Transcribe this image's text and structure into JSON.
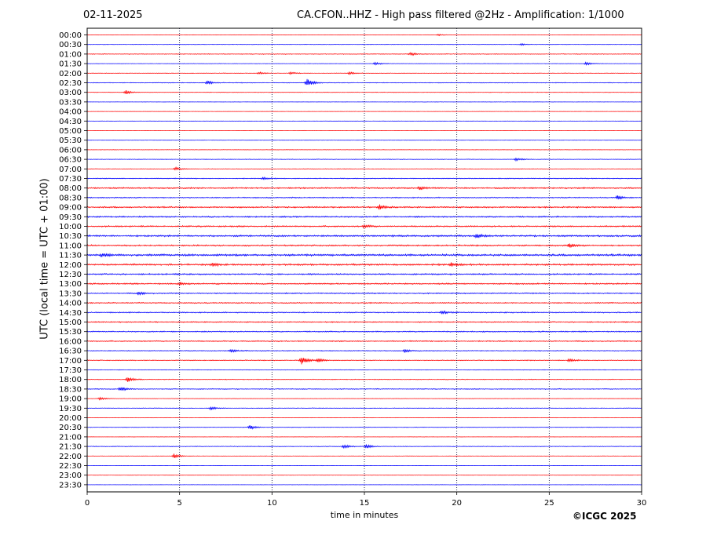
{
  "header": {
    "date": "02-11-2025",
    "title": "CA.CFON..HHZ - High pass filtered @2Hz - Amplification: 1/1000"
  },
  "footer": {
    "copyright": "©ICGC 2025"
  },
  "chart_data": {
    "type": "line",
    "xlabel": "time in minutes",
    "ylabel": "UTC (local time = UTC + 01:00)",
    "xlim": [
      0,
      30
    ],
    "x_ticks": [
      0,
      5,
      10,
      15,
      20,
      25,
      30
    ],
    "vertical_gridlines_at": [
      5,
      10,
      15,
      20,
      25
    ],
    "grid": "vertical dotted",
    "series_colors": [
      "#ff0000",
      "#0000ff"
    ],
    "row_labels": [
      "00:00",
      "00:30",
      "01:00",
      "01:30",
      "02:00",
      "02:30",
      "03:00",
      "03:30",
      "04:00",
      "04:30",
      "05:00",
      "05:30",
      "06:00",
      "06:30",
      "07:00",
      "07:30",
      "08:00",
      "08:30",
      "09:00",
      "09:30",
      "10:00",
      "10:30",
      "11:00",
      "11:30",
      "12:00",
      "12:30",
      "13:00",
      "13:30",
      "14:00",
      "14:30",
      "15:00",
      "15:30",
      "16:00",
      "16:30",
      "17:00",
      "17:30",
      "18:00",
      "18:30",
      "19:00",
      "19:30",
      "20:00",
      "20:30",
      "21:00",
      "21:30",
      "22:00",
      "22:30",
      "23:00",
      "23:30"
    ],
    "noise_level": [
      0.3,
      0.3,
      0.5,
      0.3,
      0.4,
      0.5,
      0.4,
      0.2,
      0.2,
      0.2,
      0.2,
      0.2,
      0.3,
      0.4,
      0.4,
      0.6,
      1.0,
      0.8,
      1.0,
      1.0,
      1.0,
      1.2,
      1.0,
      1.4,
      1.2,
      1.0,
      1.0,
      0.8,
      0.8,
      0.8,
      0.8,
      0.8,
      0.8,
      0.6,
      0.6,
      0.4,
      0.5,
      0.6,
      0.3,
      0.4,
      0.3,
      0.4,
      0.2,
      0.5,
      0.3,
      0.2,
      0.2,
      0.2
    ],
    "events": [
      {
        "row": 0,
        "minute": 19.0,
        "amp": 1.0
      },
      {
        "row": 1,
        "minute": 23.5,
        "amp": 1.0
      },
      {
        "row": 2,
        "minute": 17.5,
        "amp": 2.0
      },
      {
        "row": 3,
        "minute": 15.6,
        "amp": 2.0
      },
      {
        "row": 3,
        "minute": 27.0,
        "amp": 2.0
      },
      {
        "row": 4,
        "minute": 9.3,
        "amp": 1.5
      },
      {
        "row": 4,
        "minute": 11.0,
        "amp": 1.5
      },
      {
        "row": 4,
        "minute": 14.2,
        "amp": 1.5
      },
      {
        "row": 5,
        "minute": 6.5,
        "amp": 2.5
      },
      {
        "row": 5,
        "minute": 11.9,
        "amp": 6.0
      },
      {
        "row": 6,
        "minute": 2.1,
        "amp": 2.5
      },
      {
        "row": 13,
        "minute": 23.2,
        "amp": 2.0
      },
      {
        "row": 14,
        "minute": 4.8,
        "amp": 2.0
      },
      {
        "row": 15,
        "minute": 9.5,
        "amp": 1.5
      },
      {
        "row": 16,
        "minute": 18.0,
        "amp": 2.0
      },
      {
        "row": 17,
        "minute": 28.7,
        "amp": 2.5
      },
      {
        "row": 18,
        "minute": 15.8,
        "amp": 3.5
      },
      {
        "row": 20,
        "minute": 15.0,
        "amp": 2.0
      },
      {
        "row": 21,
        "minute": 21.1,
        "amp": 2.5
      },
      {
        "row": 22,
        "minute": 26.1,
        "amp": 2.5
      },
      {
        "row": 23,
        "minute": 0.8,
        "amp": 2.5
      },
      {
        "row": 24,
        "minute": 19.7,
        "amp": 3.0
      },
      {
        "row": 24,
        "minute": 6.8,
        "amp": 2.0
      },
      {
        "row": 26,
        "minute": 5.0,
        "amp": 2.0
      },
      {
        "row": 27,
        "minute": 2.8,
        "amp": 2.0
      },
      {
        "row": 29,
        "minute": 19.2,
        "amp": 2.0
      },
      {
        "row": 33,
        "minute": 7.8,
        "amp": 2.0
      },
      {
        "row": 33,
        "minute": 17.2,
        "amp": 2.0
      },
      {
        "row": 34,
        "minute": 11.6,
        "amp": 6.0
      },
      {
        "row": 34,
        "minute": 12.5,
        "amp": 2.5
      },
      {
        "row": 34,
        "minute": 26.1,
        "amp": 2.0
      },
      {
        "row": 36,
        "minute": 2.2,
        "amp": 3.5
      },
      {
        "row": 37,
        "minute": 1.8,
        "amp": 3.0
      },
      {
        "row": 38,
        "minute": 0.7,
        "amp": 2.0
      },
      {
        "row": 39,
        "minute": 6.7,
        "amp": 2.0
      },
      {
        "row": 41,
        "minute": 8.8,
        "amp": 3.0
      },
      {
        "row": 43,
        "minute": 13.9,
        "amp": 2.5
      },
      {
        "row": 43,
        "minute": 15.1,
        "amp": 2.5
      },
      {
        "row": 44,
        "minute": 4.7,
        "amp": 3.0
      }
    ]
  }
}
